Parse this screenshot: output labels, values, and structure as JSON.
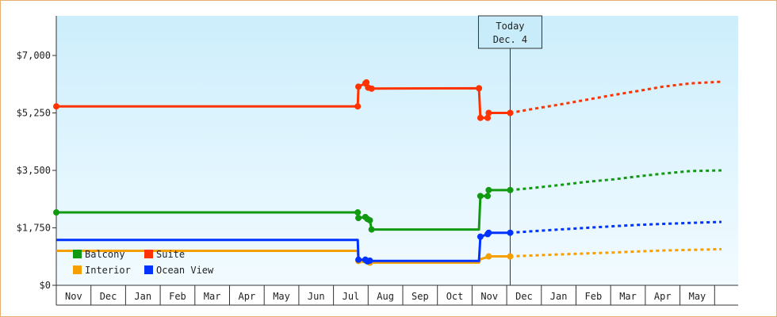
{
  "chart_data": {
    "type": "line",
    "title": "",
    "xlabel": "",
    "ylabel": "",
    "ylim": [
      0,
      7000
    ],
    "yticks": [
      0,
      1750,
      3500,
      5250,
      7000
    ],
    "ytick_labels": [
      "$0",
      "$1,750",
      "$3,500",
      "$5,250",
      "$7,000"
    ],
    "xtick_labels": [
      "Nov",
      "Dec",
      "Jan",
      "Feb",
      "Mar",
      "Apr",
      "May",
      "Jun",
      "Jul",
      "Aug",
      "Sep",
      "Oct",
      "Nov",
      "Dec",
      "Jan",
      "Feb",
      "Mar",
      "Apr",
      "May"
    ],
    "x_unit": "months since start of first Nov",
    "grid": false,
    "legend_position": "bottom-left",
    "today_marker": {
      "x": 13.1,
      "line1": "Today",
      "line2": "Dec. 4"
    },
    "series": [
      {
        "name": "Balcony",
        "color": "#119911",
        "points": [
          [
            0.0,
            2220
          ],
          [
            8.7,
            2220
          ],
          [
            8.72,
            2050
          ],
          [
            8.92,
            2080
          ],
          [
            8.98,
            2020
          ],
          [
            9.05,
            1980
          ],
          [
            9.1,
            1700
          ],
          [
            12.2,
            1700
          ],
          [
            12.24,
            2720
          ],
          [
            12.45,
            2720
          ],
          [
            12.48,
            2900
          ],
          [
            13.1,
            2900
          ]
        ],
        "forecast": [
          [
            13.1,
            2900
          ],
          [
            13.8,
            2970
          ],
          [
            14.5,
            3050
          ],
          [
            15.3,
            3150
          ],
          [
            16.1,
            3230
          ],
          [
            16.8,
            3320
          ],
          [
            17.5,
            3400
          ],
          [
            18.3,
            3480
          ],
          [
            19.2,
            3500
          ]
        ]
      },
      {
        "name": "Suite",
        "color": "#ff3300",
        "points": [
          [
            0.0,
            5450
          ],
          [
            8.7,
            5450
          ],
          [
            8.72,
            6050
          ],
          [
            8.92,
            6150
          ],
          [
            8.95,
            6180
          ],
          [
            9.0,
            6020
          ],
          [
            9.1,
            5990
          ],
          [
            12.2,
            6000
          ],
          [
            12.24,
            5100
          ],
          [
            12.45,
            5100
          ],
          [
            12.48,
            5250
          ],
          [
            13.1,
            5250
          ]
        ],
        "forecast": [
          [
            13.1,
            5250
          ],
          [
            13.8,
            5380
          ],
          [
            14.5,
            5500
          ],
          [
            15.3,
            5650
          ],
          [
            16.1,
            5800
          ],
          [
            16.8,
            5920
          ],
          [
            17.5,
            6050
          ],
          [
            18.3,
            6150
          ],
          [
            19.2,
            6200
          ]
        ]
      },
      {
        "name": "Interior",
        "color": "#f5a000",
        "points": [
          [
            0.0,
            1050
          ],
          [
            8.7,
            1050
          ],
          [
            8.72,
            740
          ],
          [
            8.92,
            700
          ],
          [
            9.05,
            690
          ],
          [
            9.1,
            690
          ],
          [
            12.2,
            690
          ],
          [
            12.24,
            800
          ],
          [
            12.45,
            860
          ],
          [
            12.48,
            880
          ],
          [
            13.1,
            880
          ]
        ],
        "forecast": [
          [
            13.1,
            880
          ],
          [
            13.8,
            910
          ],
          [
            14.5,
            940
          ],
          [
            15.3,
            970
          ],
          [
            16.1,
            1000
          ],
          [
            16.8,
            1030
          ],
          [
            17.5,
            1060
          ],
          [
            18.3,
            1080
          ],
          [
            19.2,
            1100
          ]
        ]
      },
      {
        "name": "Ocean View",
        "color": "#0033ff",
        "points": [
          [
            0.0,
            1380
          ],
          [
            8.7,
            1380
          ],
          [
            8.72,
            780
          ],
          [
            8.92,
            780
          ],
          [
            8.98,
            730
          ],
          [
            9.05,
            750
          ],
          [
            9.1,
            740
          ],
          [
            12.2,
            740
          ],
          [
            12.24,
            1480
          ],
          [
            12.45,
            1560
          ],
          [
            12.48,
            1600
          ],
          [
            13.1,
            1600
          ]
        ],
        "forecast": [
          [
            13.1,
            1600
          ],
          [
            13.8,
            1650
          ],
          [
            14.5,
            1700
          ],
          [
            15.3,
            1750
          ],
          [
            16.1,
            1800
          ],
          [
            16.8,
            1840
          ],
          [
            17.5,
            1870
          ],
          [
            18.3,
            1900
          ],
          [
            19.2,
            1930
          ]
        ]
      }
    ],
    "markers": {
      "Balcony": [
        0.0,
        8.7,
        8.72,
        8.92,
        8.98,
        9.05,
        9.1,
        12.24,
        12.45,
        12.48,
        13.1
      ],
      "Suite": [
        0.0,
        8.7,
        8.72,
        8.92,
        8.95,
        9.0,
        9.1,
        12.2,
        12.24,
        12.45,
        12.48,
        13.1
      ],
      "Interior": [
        8.72,
        9.05,
        12.48,
        13.1
      ],
      "Ocean View": [
        8.72,
        8.92,
        8.98,
        9.05,
        12.24,
        12.45,
        12.48,
        13.1
      ]
    }
  }
}
